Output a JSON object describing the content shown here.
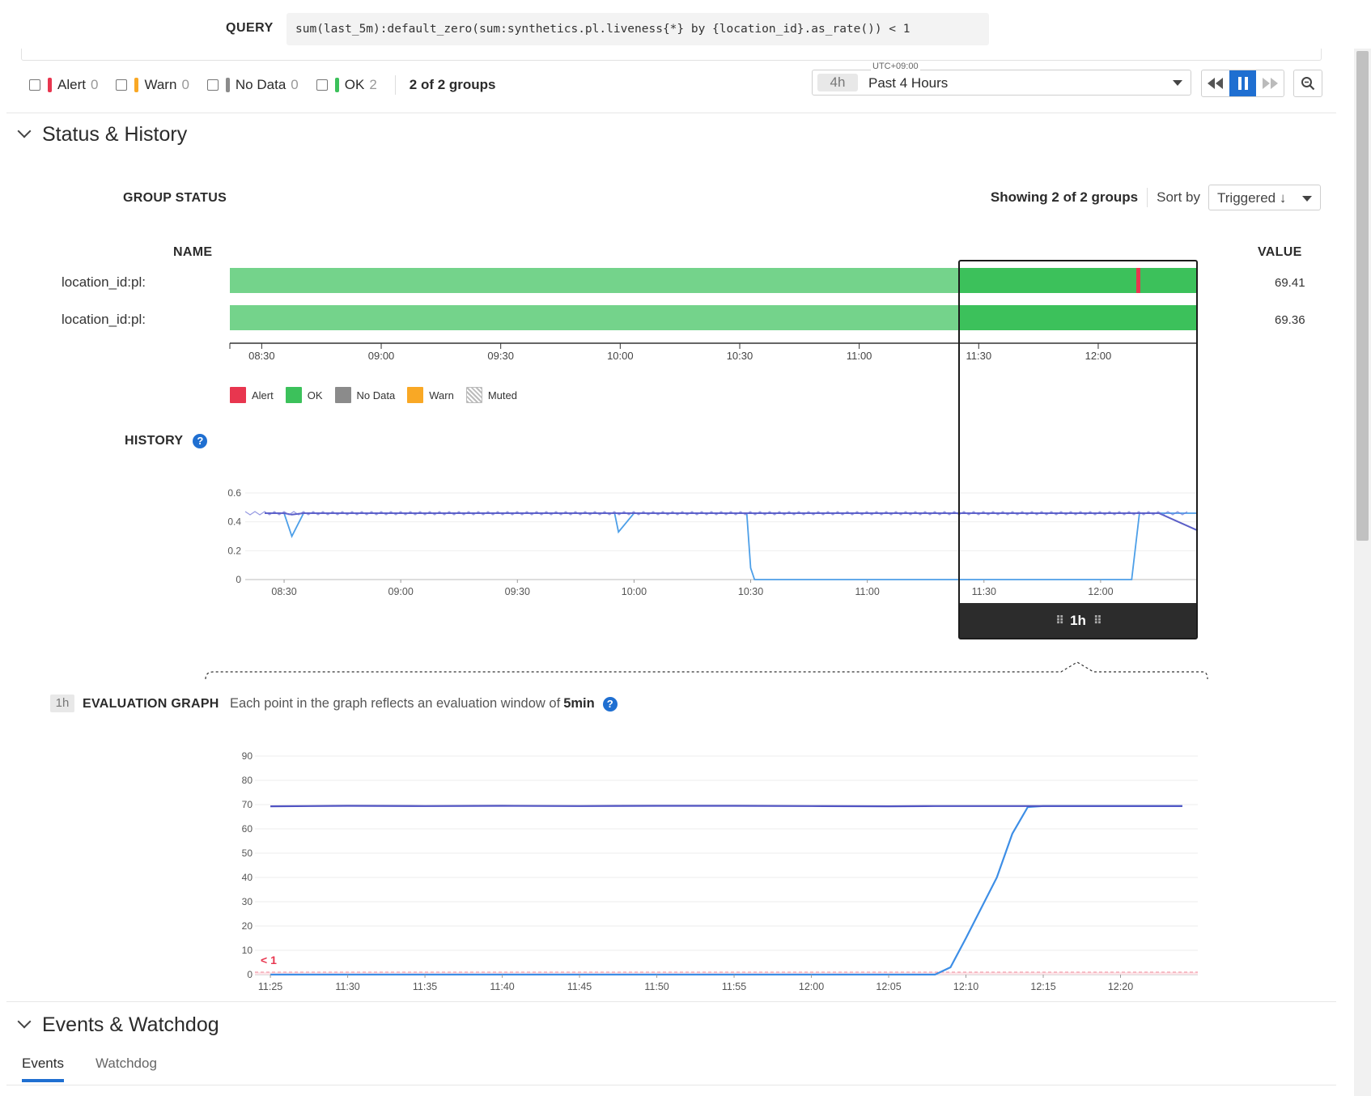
{
  "query": {
    "label": "QUERY",
    "text": "sum(last_5m):default_zero(sum:synthetics.pl.liveness{*} by {location_id}.as_rate()) < 1"
  },
  "filters": {
    "items": [
      {
        "label": "Alert",
        "count": "0",
        "color": "#e8364f"
      },
      {
        "label": "Warn",
        "count": "0",
        "color": "#f9a825"
      },
      {
        "label": "No Data",
        "count": "0",
        "color": "#8b8b8b"
      },
      {
        "label": "OK",
        "count": "2",
        "color": "#3cc15b"
      }
    ],
    "groups_label": "2 of 2 groups"
  },
  "time_picker": {
    "timezone": "UTC+09:00",
    "badge": "4h",
    "label": "Past 4 Hours"
  },
  "status_history": {
    "title": "Status & History",
    "group_status_heading": "GROUP STATUS",
    "showing_label": "Showing 2 of 2 groups",
    "sort_by_label": "Sort by",
    "sort_value": "Triggered ↓",
    "name_col": "NAME",
    "value_col": "VALUE",
    "rows": [
      {
        "name": "location_id:pl:",
        "value": "69.41"
      },
      {
        "name": "location_id:pl:",
        "value": "69.36"
      }
    ],
    "time_ticks": [
      "08:30",
      "09:00",
      "09:30",
      "10:00",
      "10:30",
      "11:00",
      "11:30",
      "12:00"
    ],
    "legend": [
      {
        "label": "Alert",
        "color": "#e8364f"
      },
      {
        "label": "OK",
        "color": "#3cc15b"
      },
      {
        "label": "No Data",
        "color": "#8b8b8b"
      },
      {
        "label": "Warn",
        "color": "#f9a825"
      },
      {
        "label": "Muted",
        "color": "pattern"
      }
    ],
    "history_heading": "HISTORY",
    "range_label": "1h"
  },
  "evaluation": {
    "badge": "1h",
    "heading": "EVALUATION GRAPH",
    "description": "Each point in the graph reflects an evaluation window of",
    "window": "5min",
    "threshold_label": "< 1"
  },
  "events": {
    "title": "Events & Watchdog",
    "tabs": [
      "Events",
      "Watchdog"
    ]
  },
  "chart_data": [
    {
      "type": "line",
      "title": "HISTORY",
      "x": [
        "08:25",
        "08:30",
        "08:32",
        "08:35",
        "09:00",
        "09:30",
        "09:55",
        "09:56",
        "10:00",
        "10:29",
        "10:30",
        "10:31",
        "11:00",
        "11:30",
        "12:00",
        "12:08",
        "12:10",
        "12:15",
        "12:25"
      ],
      "ylim": [
        0,
        0.6
      ],
      "yticks": [
        0,
        0.2,
        0.4,
        0.6
      ],
      "xticks": [
        "08:30",
        "09:00",
        "09:30",
        "10:00",
        "10:30",
        "11:00",
        "11:30",
        "12:00"
      ],
      "series": [
        {
          "values": [
            0.46,
            0.46,
            0.3,
            0.46,
            0.46,
            0.46,
            0.46,
            0.33,
            0.46,
            0.46,
            0.08,
            0,
            0,
            0,
            0,
            0,
            0.46,
            0.46,
            0.46
          ]
        },
        {
          "values": [
            0.46,
            0.46,
            0.45,
            0.46,
            0.46,
            0.46,
            0.46,
            0.46,
            0.46,
            0.46,
            0.46,
            0.46,
            0.46,
            0.46,
            0.46,
            0.46,
            0.46,
            0.46,
            0.34
          ]
        }
      ]
    },
    {
      "type": "line",
      "title": "EVALUATION GRAPH",
      "x": [
        "11:25",
        "11:30",
        "11:35",
        "11:40",
        "11:45",
        "11:50",
        "11:55",
        "12:00",
        "12:05",
        "12:08",
        "12:09",
        "12:10",
        "12:12",
        "12:13",
        "12:14",
        "12:15",
        "12:20",
        "12:24"
      ],
      "ylim": [
        0,
        90
      ],
      "yticks": [
        0,
        10,
        20,
        30,
        40,
        50,
        60,
        70,
        80,
        90
      ],
      "xticks": [
        "11:25",
        "11:30",
        "11:35",
        "11:40",
        "11:45",
        "11:50",
        "11:55",
        "12:00",
        "12:05",
        "12:10",
        "12:15",
        "12:20"
      ],
      "threshold": 1,
      "series": [
        {
          "values": [
            0,
            0,
            0,
            0,
            0,
            0,
            0,
            0,
            0,
            0,
            3,
            15,
            40,
            58,
            69,
            69.4,
            69.4,
            69.4
          ]
        },
        {
          "values": [
            69.3,
            69.5,
            69.4,
            69.5,
            69.4,
            69.5,
            69.5,
            69.4,
            69.3,
            69.4,
            69.4,
            69.4,
            69.4,
            69.4,
            69.4,
            69.4,
            69.4,
            69.4
          ]
        }
      ]
    }
  ]
}
